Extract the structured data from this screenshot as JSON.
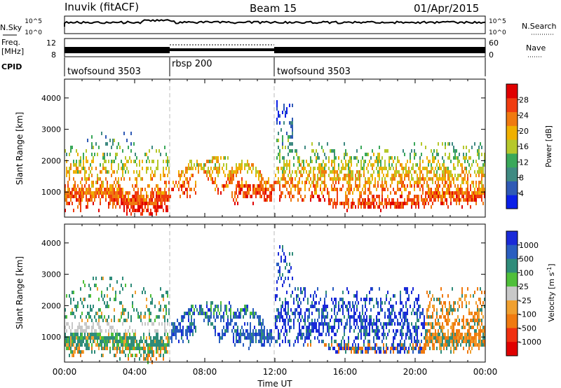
{
  "header": {
    "station": "Inuvik (fitACF)",
    "beam": "Beam 15",
    "date": "01/Apr/2015"
  },
  "strips": {
    "nsky_label": "N.Sky",
    "nsearch_label": "N.Search",
    "freq_label_1": "Freq.",
    "freq_label_2": "[MHz]",
    "nave_label": "Nave",
    "cpid_label": "CPID",
    "nsky_ticks": [
      "10^5",
      "10^0"
    ],
    "nsearch_ticks": [
      "10^5",
      "10^0"
    ],
    "freq_ticks": [
      "12",
      "8"
    ],
    "nave_ticks": [
      "60",
      "0"
    ]
  },
  "cpid": {
    "segments": [
      {
        "start": 0,
        "end": 6,
        "label": "twofsound 3503"
      },
      {
        "start": 6,
        "end": 12,
        "label": "rbsp 200"
      },
      {
        "start": 12,
        "end": 24,
        "label": "twofsound 3503"
      }
    ]
  },
  "chart_data": [
    {
      "type": "heatmap",
      "title": "",
      "xlabel": "Time UT",
      "ylabel": "Slant Range [km]",
      "xlim": [
        0,
        24
      ],
      "ylim": [
        200,
        4600
      ],
      "x_ticks": [
        "00:00",
        "04:00",
        "08:00",
        "12:00",
        "16:00",
        "20:00",
        "00:00"
      ],
      "y_ticks": [
        1000,
        2000,
        3000,
        4000
      ],
      "colorbar": {
        "label": "Power [dB]",
        "ticks": [
          4,
          8,
          12,
          16,
          20,
          24,
          28
        ],
        "range": [
          0,
          32
        ],
        "colors": [
          "#0a1fe8",
          "#2f5ab5",
          "#3f8a82",
          "#3aa85a",
          "#b6c82c",
          "#f0b000",
          "#f07a10",
          "#f03c10",
          "#e00000"
        ]
      }
    },
    {
      "type": "heatmap",
      "title": "",
      "xlabel": "Time UT",
      "ylabel": "Slant Range [km]",
      "xlim": [
        0,
        24
      ],
      "ylim": [
        200,
        4600
      ],
      "x_ticks": [
        "00:00",
        "04:00",
        "08:00",
        "12:00",
        "16:00",
        "20:00",
        "00:00"
      ],
      "y_ticks": [
        1000,
        2000,
        3000,
        4000
      ],
      "colorbar": {
        "label": "Velocity [m s^-1]",
        "ticks": [
          1000,
          500,
          100,
          25,
          -25,
          -100,
          -500,
          -1000
        ],
        "colors": [
          "#1a2ad8",
          "#2a5ec0",
          "#2f8c7a",
          "#4fbf3a",
          "#c8c8c8",
          "#f0a030",
          "#f07a10",
          "#f03010",
          "#e00000"
        ]
      }
    }
  ]
}
